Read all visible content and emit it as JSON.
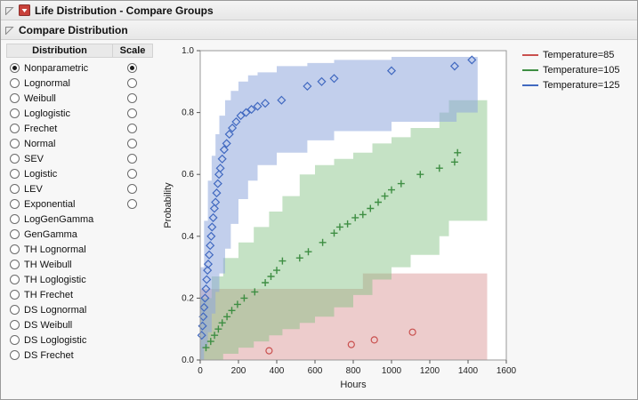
{
  "window": {
    "title": "Life Distribution - Compare Groups",
    "section_title": "Compare Distribution"
  },
  "panel": {
    "distribution_header": "Distribution",
    "scale_header": "Scale",
    "distributions": [
      {
        "label": "Nonparametric",
        "dist_selected": true,
        "has_scale": true,
        "scale_selected": true
      },
      {
        "label": "Lognormal",
        "dist_selected": false,
        "has_scale": true,
        "scale_selected": false
      },
      {
        "label": "Weibull",
        "dist_selected": false,
        "has_scale": true,
        "scale_selected": false
      },
      {
        "label": "Loglogistic",
        "dist_selected": false,
        "has_scale": true,
        "scale_selected": false
      },
      {
        "label": "Frechet",
        "dist_selected": false,
        "has_scale": true,
        "scale_selected": false
      },
      {
        "label": "Normal",
        "dist_selected": false,
        "has_scale": true,
        "scale_selected": false
      },
      {
        "label": "SEV",
        "dist_selected": false,
        "has_scale": true,
        "scale_selected": false
      },
      {
        "label": "Logistic",
        "dist_selected": false,
        "has_scale": true,
        "scale_selected": false
      },
      {
        "label": "LEV",
        "dist_selected": false,
        "has_scale": true,
        "scale_selected": false
      },
      {
        "label": "Exponential",
        "dist_selected": false,
        "has_scale": true,
        "scale_selected": false
      },
      {
        "label": "LogGenGamma",
        "dist_selected": false,
        "has_scale": false,
        "scale_selected": false
      },
      {
        "label": "GenGamma",
        "dist_selected": false,
        "has_scale": false,
        "scale_selected": false
      },
      {
        "label": "TH Lognormal",
        "dist_selected": false,
        "has_scale": false,
        "scale_selected": false
      },
      {
        "label": "TH Weibull",
        "dist_selected": false,
        "has_scale": false,
        "scale_selected": false
      },
      {
        "label": "TH Loglogistic",
        "dist_selected": false,
        "has_scale": false,
        "scale_selected": false
      },
      {
        "label": "TH Frechet",
        "dist_selected": false,
        "has_scale": false,
        "scale_selected": false
      },
      {
        "label": "DS Lognormal",
        "dist_selected": false,
        "has_scale": false,
        "scale_selected": false
      },
      {
        "label": "DS Weibull",
        "dist_selected": false,
        "has_scale": false,
        "scale_selected": false
      },
      {
        "label": "DS Loglogistic",
        "dist_selected": false,
        "has_scale": false,
        "scale_selected": false
      },
      {
        "label": "DS Frechet",
        "dist_selected": false,
        "has_scale": false,
        "scale_selected": false
      }
    ]
  },
  "chart_data": {
    "type": "scatter",
    "title": "",
    "xlabel": "Hours",
    "ylabel": "Probability",
    "xlim": [
      0,
      1600
    ],
    "ylim": [
      0,
      1
    ],
    "xticks": [
      0,
      200,
      400,
      600,
      800,
      1000,
      1200,
      1400,
      1600
    ],
    "yticks": [
      0,
      0.2,
      0.4,
      0.6,
      0.8,
      1.0
    ],
    "grid": false,
    "legend_position": "right",
    "series": [
      {
        "name": "Temperature=85",
        "color": "#c9504e",
        "marker": "circle",
        "points": [
          [
            360,
            0.03
          ],
          [
            790,
            0.05
          ],
          [
            910,
            0.065
          ],
          [
            1110,
            0.09
          ]
        ],
        "band": {
          "fill": "#d88f8f",
          "opacity": 0.45,
          "x": [
            0,
            850,
            1500
          ],
          "hi": [
            0.23,
            0.28,
            0.28
          ],
          "lo": [
            0,
            0,
            0
          ]
        }
      },
      {
        "name": "Temperature=105",
        "color": "#3e8e43",
        "marker": "plus",
        "points": [
          [
            30,
            0.04
          ],
          [
            55,
            0.06
          ],
          [
            75,
            0.08
          ],
          [
            95,
            0.1
          ],
          [
            115,
            0.12
          ],
          [
            140,
            0.14
          ],
          [
            165,
            0.16
          ],
          [
            195,
            0.18
          ],
          [
            230,
            0.2
          ],
          [
            285,
            0.22
          ],
          [
            340,
            0.25
          ],
          [
            370,
            0.27
          ],
          [
            400,
            0.29
          ],
          [
            430,
            0.32
          ],
          [
            520,
            0.33
          ],
          [
            565,
            0.35
          ],
          [
            640,
            0.38
          ],
          [
            700,
            0.41
          ],
          [
            730,
            0.43
          ],
          [
            770,
            0.44
          ],
          [
            810,
            0.46
          ],
          [
            850,
            0.47
          ],
          [
            890,
            0.49
          ],
          [
            930,
            0.51
          ],
          [
            965,
            0.53
          ],
          [
            1000,
            0.55
          ],
          [
            1050,
            0.57
          ],
          [
            1150,
            0.6
          ],
          [
            1250,
            0.62
          ],
          [
            1330,
            0.64
          ],
          [
            1345,
            0.67
          ]
        ],
        "band": {
          "fill": "#7fbf7f",
          "opacity": 0.45,
          "x": [
            0,
            60,
            120,
            200,
            280,
            360,
            430,
            520,
            600,
            700,
            800,
            900,
            1000,
            1100,
            1250,
            1300,
            1500
          ],
          "hi": [
            0.2,
            0.27,
            0.33,
            0.38,
            0.43,
            0.48,
            0.53,
            0.6,
            0.63,
            0.65,
            0.67,
            0.7,
            0.72,
            0.75,
            0.8,
            0.84,
            0.84
          ],
          "lo": [
            0,
            0,
            0.02,
            0.04,
            0.06,
            0.08,
            0.1,
            0.12,
            0.14,
            0.17,
            0.21,
            0.26,
            0.3,
            0.34,
            0.4,
            0.45,
            0.45
          ]
        }
      },
      {
        "name": "Temperature=125",
        "color": "#4169c0",
        "marker": "diamond",
        "points": [
          [
            8,
            0.08
          ],
          [
            12,
            0.11
          ],
          [
            16,
            0.14
          ],
          [
            20,
            0.17
          ],
          [
            25,
            0.2
          ],
          [
            30,
            0.23
          ],
          [
            34,
            0.26
          ],
          [
            38,
            0.29
          ],
          [
            42,
            0.31
          ],
          [
            47,
            0.34
          ],
          [
            52,
            0.37
          ],
          [
            57,
            0.4
          ],
          [
            62,
            0.43
          ],
          [
            68,
            0.46
          ],
          [
            74,
            0.49
          ],
          [
            80,
            0.51
          ],
          [
            86,
            0.54
          ],
          [
            92,
            0.57
          ],
          [
            98,
            0.6
          ],
          [
            105,
            0.62
          ],
          [
            115,
            0.65
          ],
          [
            125,
            0.68
          ],
          [
            138,
            0.7
          ],
          [
            152,
            0.73
          ],
          [
            168,
            0.75
          ],
          [
            188,
            0.77
          ],
          [
            212,
            0.79
          ],
          [
            240,
            0.8
          ],
          [
            268,
            0.81
          ],
          [
            300,
            0.82
          ],
          [
            340,
            0.83
          ],
          [
            425,
            0.84
          ],
          [
            560,
            0.885
          ],
          [
            635,
            0.9
          ],
          [
            700,
            0.91
          ],
          [
            1000,
            0.935
          ],
          [
            1330,
            0.95
          ],
          [
            1420,
            0.97
          ]
        ],
        "band": {
          "fill": "#8fa8dc",
          "opacity": 0.55,
          "x": [
            0,
            20,
            40,
            60,
            80,
            100,
            130,
            160,
            200,
            250,
            300,
            400,
            560,
            700,
            1000,
            1340,
            1450
          ],
          "hi": [
            0.3,
            0.45,
            0.58,
            0.66,
            0.73,
            0.79,
            0.84,
            0.87,
            0.9,
            0.92,
            0.93,
            0.95,
            0.96,
            0.97,
            0.98,
            0.98,
            0.98
          ],
          "lo": [
            0,
            0.04,
            0.09,
            0.15,
            0.22,
            0.28,
            0.36,
            0.44,
            0.52,
            0.58,
            0.63,
            0.67,
            0.71,
            0.74,
            0.77,
            0.8,
            0.82
          ]
        }
      }
    ]
  }
}
